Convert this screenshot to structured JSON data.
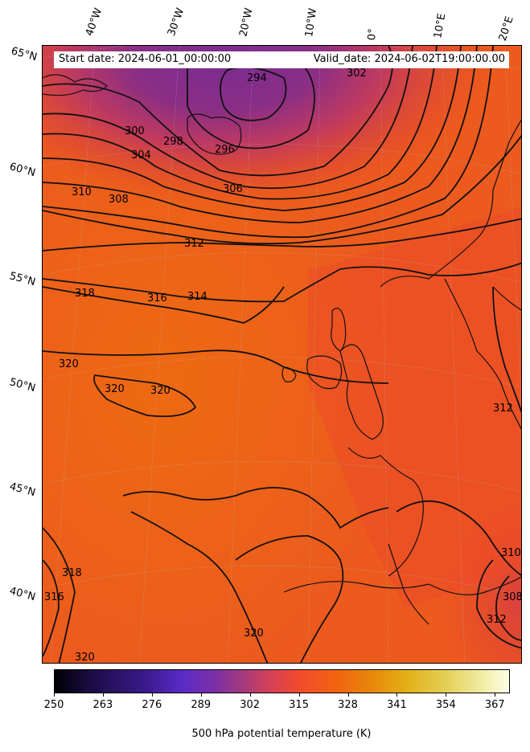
{
  "header": {
    "start_date": "Start date: 2024-06-01_00:00:00",
    "valid_date": "Valid_date: 2024-06-02T19:00:00.00"
  },
  "longitude_labels": [
    "40°W",
    "30°W",
    "20°W",
    "10°W",
    "0°",
    "10°E",
    "20°E"
  ],
  "latitude_labels": [
    "65°N",
    "60°N",
    "55°N",
    "50°N",
    "45°N",
    "40°N"
  ],
  "contour_labels": [
    "294",
    "302",
    "300",
    "298",
    "296",
    "304",
    "306",
    "310",
    "308",
    "312",
    "318",
    "316",
    "314",
    "320",
    "320",
    "320",
    "318",
    "316",
    "320",
    "320",
    "312",
    "310",
    "308",
    "312"
  ],
  "colorbar": {
    "title": "500 hPa potential temperature (K)",
    "ticks": [
      "250",
      "263",
      "276",
      "289",
      "302",
      "315",
      "328",
      "341",
      "354",
      "367"
    ],
    "min": 250,
    "max": 371,
    "colormap": "CMRmap-like (black → purple → red → orange → yellow → white)"
  },
  "colors": {
    "cold_core": "#7b2d8e",
    "mid": "#e8432a",
    "warm": "#ef6516",
    "contour_line": "#000000"
  }
}
